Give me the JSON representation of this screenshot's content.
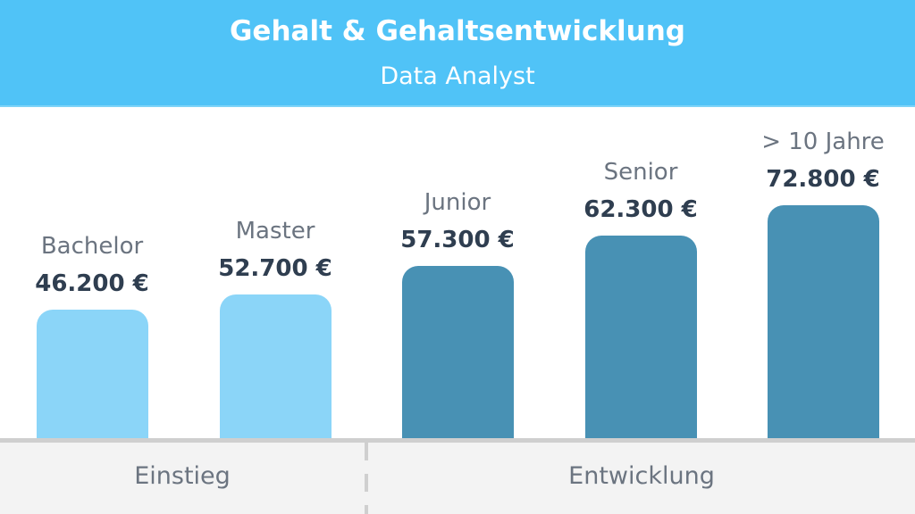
{
  "header": {
    "title": "Gehalt & Gehaltsentwicklung",
    "subtitle": "Data Analyst"
  },
  "colors": {
    "header_bg": "#50c3f7",
    "einstieg_bar": "#8bd5f8",
    "entwicklung_bar": "#4891b4",
    "value_text": "#2f3e50",
    "label_text": "#6b7480",
    "footer_bg": "#f3f3f3"
  },
  "groups": [
    {
      "label": "Einstieg"
    },
    {
      "label": "Entwicklung"
    }
  ],
  "chart_data": {
    "type": "bar",
    "title": "Gehalt & Gehaltsentwicklung",
    "subtitle": "Data Analyst",
    "categories": [
      "Bachelor",
      "Master",
      "Junior",
      "Senior",
      "> 10 Jahre"
    ],
    "values": [
      46200,
      52700,
      57300,
      62300,
      72800
    ],
    "value_labels": [
      "46.200 €",
      "52.700 €",
      "57.300 €",
      "62.300 €",
      "72.800 €"
    ],
    "groups": [
      {
        "name": "Einstieg",
        "categories": [
          "Bachelor",
          "Master"
        ]
      },
      {
        "name": "Entwicklung",
        "categories": [
          "Junior",
          "Senior",
          "> 10 Jahre"
        ]
      }
    ],
    "xlabel": "",
    "ylabel": "",
    "grid": false,
    "legend": "none",
    "currency": "EUR"
  }
}
